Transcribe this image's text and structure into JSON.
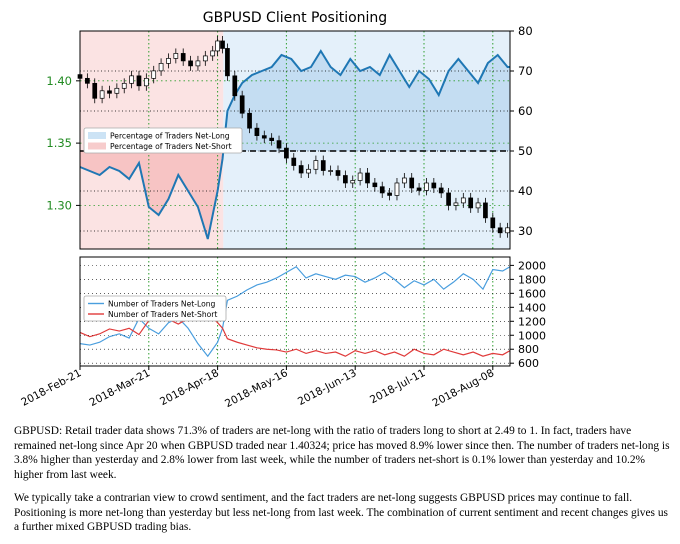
{
  "chart_data": [
    {
      "type": "line",
      "title": "GBPUSD Client Positioning",
      "x_ticks": [
        "2018-Feb-21",
        "2018-Mar-21",
        "2018-Apr-18",
        "2018-May-16",
        "2018-Jun-13",
        "2018-Jul-11",
        "2018-Aug-08"
      ],
      "x_range": [
        0,
        175
      ],
      "x_tick_positions": [
        0,
        28,
        56,
        84,
        112,
        140,
        168
      ],
      "left_axis": {
        "label": "",
        "ylim": [
          1.265,
          1.44
        ],
        "ticks": [
          "1.40",
          "1.35",
          "1.30"
        ],
        "tick_values": [
          1.4,
          1.35,
          1.3
        ],
        "color": "#228B22"
      },
      "right_axis": {
        "label": "",
        "ylim": [
          25.5,
          80
        ],
        "ticks": [
          "80",
          "70",
          "60",
          "50",
          "40",
          "30"
        ],
        "tick_values": [
          80,
          70,
          60,
          50,
          40,
          30
        ]
      },
      "reference_line": 50,
      "legend": {
        "placement": "center-left",
        "entries": [
          {
            "label": "Percentage of Traders Net-Long",
            "color": "#cce3f5"
          },
          {
            "label": "Percentage of Traders Net-Short",
            "color": "#f7cccc"
          }
        ]
      },
      "series": [
        {
          "name": "Percentage of Traders Net-Long",
          "axis": "right",
          "color": "#1f77b4",
          "x": [
            0,
            4,
            8,
            12,
            16,
            20,
            24,
            28,
            32,
            36,
            40,
            44,
            48,
            52,
            56,
            58,
            60,
            63,
            66,
            70,
            74,
            78,
            82,
            86,
            90,
            94,
            98,
            102,
            106,
            110,
            114,
            118,
            122,
            126,
            130,
            134,
            138,
            142,
            146,
            150,
            154,
            158,
            162,
            166,
            170,
            174,
            175
          ],
          "y": [
            46,
            45,
            44,
            46,
            45,
            43,
            47,
            36,
            34,
            38,
            44,
            40,
            36,
            28,
            40,
            48,
            60,
            64,
            67,
            69,
            70,
            71,
            74,
            73,
            70,
            71,
            75,
            71,
            69,
            73,
            70,
            71,
            69,
            74,
            70,
            66,
            70,
            68,
            64,
            70,
            73,
            70,
            67,
            72,
            74,
            71,
            71
          ]
        },
        {
          "name": "GBPUSD price",
          "axis": "left",
          "style": "candlestick",
          "color": "#000000",
          "x": [
            0,
            3,
            6,
            9,
            12,
            15,
            18,
            21,
            24,
            27,
            30,
            33,
            36,
            39,
            42,
            45,
            48,
            51,
            54,
            56,
            58,
            60,
            63,
            66,
            69,
            72,
            75,
            78,
            81,
            84,
            87,
            90,
            93,
            96,
            99,
            102,
            105,
            108,
            111,
            114,
            117,
            120,
            123,
            126,
            129,
            132,
            135,
            138,
            141,
            144,
            147,
            150,
            153,
            156,
            159,
            162,
            165,
            168,
            171,
            174
          ],
          "y": [
            1.402,
            1.398,
            1.386,
            1.392,
            1.39,
            1.394,
            1.398,
            1.404,
            1.396,
            1.402,
            1.408,
            1.414,
            1.418,
            1.422,
            1.416,
            1.412,
            1.416,
            1.42,
            1.424,
            1.432,
            1.426,
            1.404,
            1.388,
            1.374,
            1.362,
            1.356,
            1.354,
            1.352,
            1.346,
            1.338,
            1.332,
            1.326,
            1.329,
            1.336,
            1.328,
            1.328,
            1.324,
            1.318,
            1.32,
            1.326,
            1.318,
            1.315,
            1.31,
            1.308,
            1.318,
            1.322,
            1.314,
            1.312,
            1.318,
            1.314,
            1.31,
            1.3,
            1.302,
            1.306,
            1.298,
            1.302,
            1.29,
            1.282,
            1.278,
            1.282
          ]
        }
      ]
    },
    {
      "type": "line",
      "title": "",
      "x_range": [
        0,
        175
      ],
      "ylim": [
        560,
        2120
      ],
      "y_ticks": [
        "2000",
        "1800",
        "1600",
        "1400",
        "1200",
        "1000",
        "800",
        "600"
      ],
      "y_tick_values": [
        2000,
        1800,
        1600,
        1400,
        1200,
        1000,
        800,
        600
      ],
      "legend": {
        "placement": "center-left",
        "entries": [
          {
            "label": "Number of Traders Net-Long",
            "color": "#4a9ede"
          },
          {
            "label": "Number of Traders Net-Short",
            "color": "#e03a3a"
          }
        ]
      },
      "series": [
        {
          "name": "Number of Traders Net-Long",
          "color": "#4a9ede",
          "x": [
            0,
            4,
            8,
            12,
            16,
            20,
            24,
            28,
            32,
            36,
            40,
            44,
            48,
            52,
            56,
            58,
            60,
            64,
            68,
            72,
            76,
            80,
            84,
            88,
            92,
            96,
            100,
            104,
            108,
            112,
            116,
            120,
            124,
            128,
            132,
            136,
            140,
            144,
            148,
            152,
            156,
            160,
            164,
            168,
            172,
            175
          ],
          "y": [
            880,
            860,
            900,
            980,
            1020,
            960,
            1240,
            1100,
            1020,
            1180,
            1250,
            1100,
            880,
            700,
            900,
            1100,
            1500,
            1560,
            1650,
            1720,
            1760,
            1820,
            1900,
            1980,
            1820,
            1880,
            1840,
            1800,
            1860,
            1840,
            1760,
            1820,
            1900,
            1800,
            1680,
            1780,
            1720,
            1800,
            1660,
            1760,
            1880,
            1800,
            1660,
            1940,
            1920,
            1980
          ]
        },
        {
          "name": "Number of Traders Net-Short",
          "color": "#e03a3a",
          "x": [
            0,
            4,
            8,
            12,
            16,
            20,
            24,
            28,
            32,
            36,
            40,
            44,
            48,
            52,
            56,
            58,
            60,
            64,
            68,
            72,
            76,
            80,
            84,
            88,
            92,
            96,
            100,
            104,
            108,
            112,
            116,
            120,
            124,
            128,
            132,
            136,
            140,
            144,
            148,
            152,
            156,
            160,
            164,
            168,
            172,
            175
          ],
          "y": [
            1040,
            980,
            1020,
            1090,
            1060,
            1100,
            1010,
            1210,
            1280,
            1230,
            1160,
            1240,
            1260,
            1310,
            1180,
            1100,
            950,
            900,
            860,
            820,
            800,
            790,
            760,
            800,
            740,
            780,
            740,
            760,
            700,
            780,
            740,
            780,
            720,
            760,
            700,
            800,
            740,
            720,
            800,
            760,
            720,
            760,
            700,
            740,
            720,
            780
          ]
        }
      ]
    }
  ],
  "captions": [
    "GBPUSD: Retail trader data shows 71.3% of traders are net-long with the ratio of traders long to short at 2.49 to 1. In fact, traders have remained net-long since Apr 20 when GBPUSD traded near 1.40324; price has moved 8.9% lower since then. The number of traders net-long is 3.8% higher than yesterday and 2.8% lower from last week, while the number of traders net-short is 0.1% lower than yesterday and 10.2% higher from last week.",
    "We typically take a contrarian view to crowd sentiment, and the fact traders are net-long suggests GBPUSD prices may continue to fall. Positioning is more net-long than yesterday but less net-long from last week. The combination of current sentiment and recent changes gives us a further mixed GBPUSD trading bias."
  ]
}
